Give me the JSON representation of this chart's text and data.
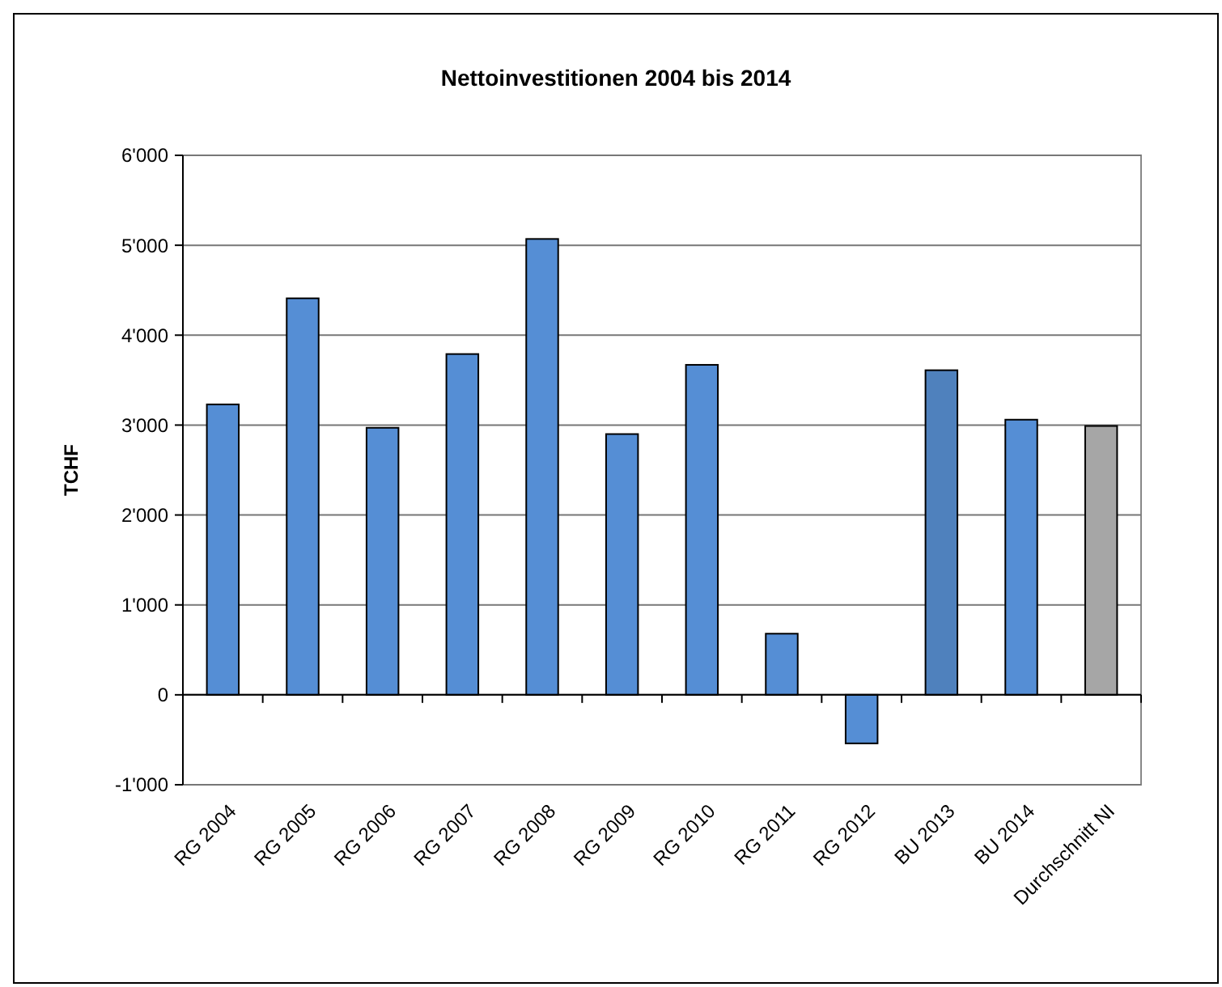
{
  "chart_data": {
    "type": "bar",
    "title": "Nettoinvestitionen 2004 bis 2014",
    "ylabel": "TCHF",
    "categories": [
      "RG 2004",
      "RG 2005",
      "RG 2006",
      "RG 2007",
      "RG 2008",
      "RG 2009",
      "RG 2010",
      "RG 2011",
      "RG 2012",
      "BU 2013",
      "BU 2014",
      "Durchschnitt NI"
    ],
    "values": [
      3230,
      4410,
      2970,
      3790,
      5070,
      2900,
      3670,
      680,
      -540,
      3610,
      3060,
      2990
    ],
    "colors": [
      "#558ed5",
      "#558ed5",
      "#558ed5",
      "#558ed5",
      "#558ed5",
      "#558ed5",
      "#558ed5",
      "#558ed5",
      "#558ed5",
      "#4f81bd",
      "#558ed5",
      "#a6a6a6"
    ],
    "ylim": [
      -1000,
      6000
    ],
    "yticks": [
      {
        "value": -1000,
        "label": "-1'000"
      },
      0,
      {
        "value": 1000,
        "label": "1'000"
      },
      {
        "value": 2000,
        "label": "2'000"
      },
      {
        "value": 3000,
        "label": "3'000"
      },
      {
        "value": 4000,
        "label": "4'000"
      },
      {
        "value": 5000,
        "label": "5'000"
      },
      {
        "value": 6000,
        "label": "6'000"
      }
    ],
    "grid": "y"
  }
}
